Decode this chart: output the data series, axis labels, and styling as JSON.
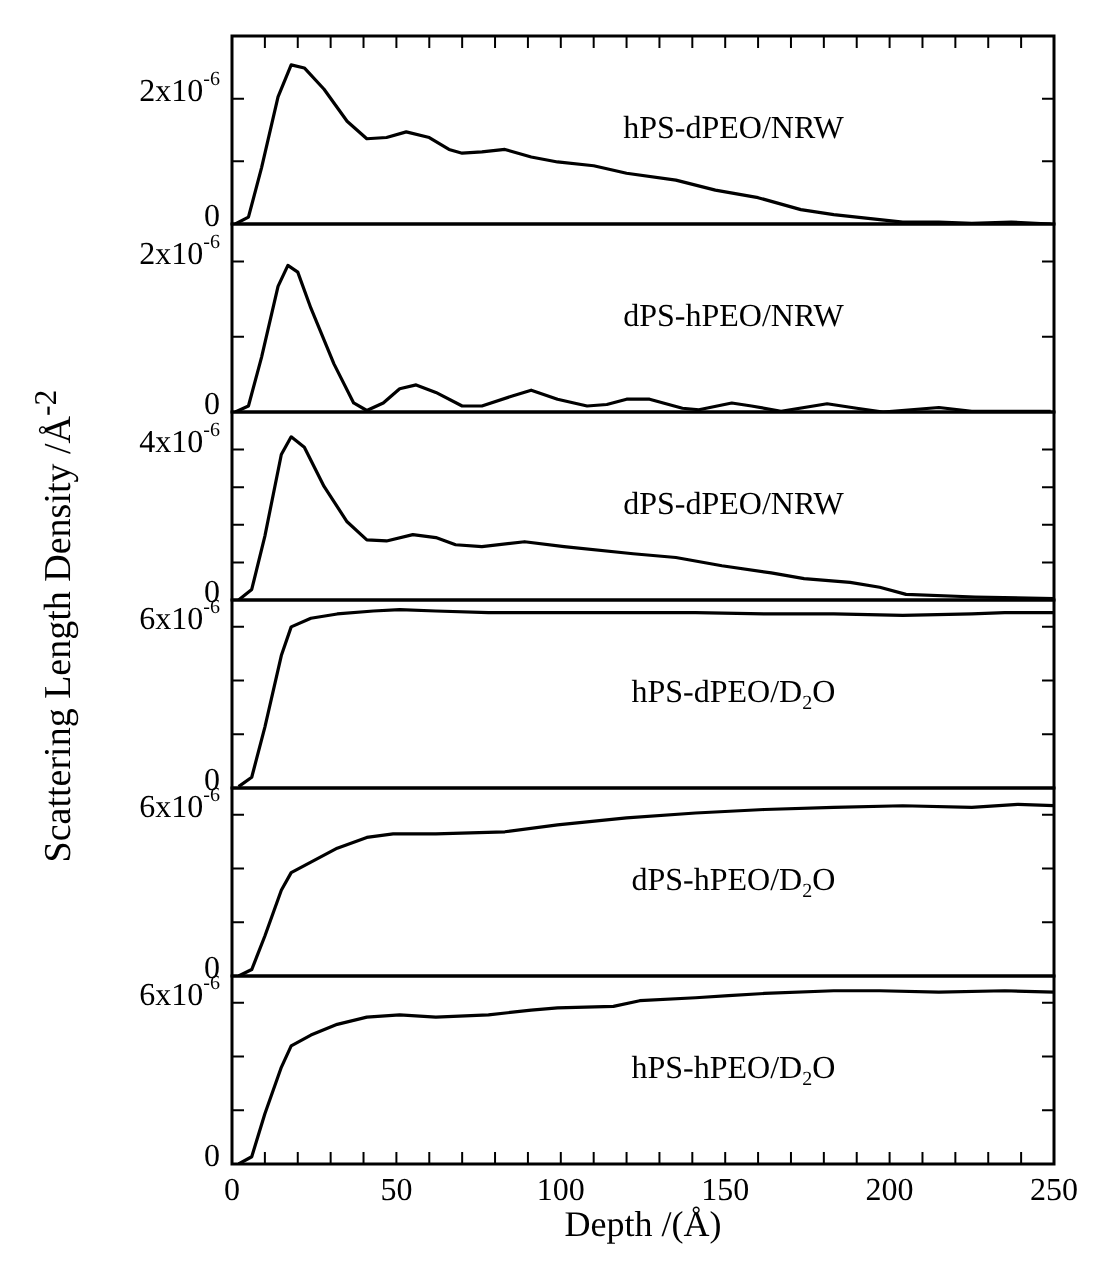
{
  "chart_data": [
    {
      "type": "line",
      "annotations": [
        "hPS-dPEO/NRW"
      ],
      "tick_labels": "y",
      "xlim": [
        0,
        250
      ],
      "xticks": [
        {
          "value": 0,
          "label": null
        },
        {
          "value": 10,
          "label": null
        },
        {
          "value": 20,
          "label": null
        },
        {
          "value": 30,
          "label": null
        },
        {
          "value": 40,
          "label": null
        },
        {
          "value": 50,
          "label": null
        },
        {
          "value": 60,
          "label": null
        },
        {
          "value": 70,
          "label": null
        },
        {
          "value": 80,
          "label": null
        },
        {
          "value": 90,
          "label": null
        },
        {
          "value": 100,
          "label": null
        },
        {
          "value": 110,
          "label": null
        },
        {
          "value": 120,
          "label": null
        },
        {
          "value": 130,
          "label": null
        },
        {
          "value": 140,
          "label": null
        },
        {
          "value": 150,
          "label": null
        },
        {
          "value": 160,
          "label": null
        },
        {
          "value": 170,
          "label": null
        },
        {
          "value": 180,
          "label": null
        },
        {
          "value": 190,
          "label": null
        },
        {
          "value": 200,
          "label": null
        },
        {
          "value": 210,
          "label": null
        },
        {
          "value": 220,
          "label": null
        },
        {
          "value": 230,
          "label": null
        },
        {
          "value": 240,
          "label": null
        },
        {
          "value": 250,
          "label": null
        }
      ],
      "ylim": [
        0,
        3e-06
      ],
      "yticks": [
        {
          "value": 0,
          "label": "0"
        },
        {
          "value": 1e-06,
          "label": null
        },
        {
          "value": 2e-06,
          "label": "2x10$^{-6}$"
        }
      ],
      "x": [
        1,
        5,
        9,
        14,
        18,
        22,
        28,
        35,
        41,
        47,
        53,
        60,
        66,
        70,
        76,
        83,
        91,
        99,
        110,
        120,
        135,
        147,
        160,
        173,
        183,
        204,
        215,
        225,
        237,
        249
      ],
      "series": [
        {
          "color": "#000000",
          "values": [
            0,
            1.1e-07,
            9e-07,
            2.03e-06,
            2.54e-06,
            2.49e-06,
            2.15e-06,
            1.64e-06,
            1.36e-06,
            1.38e-06,
            1.47e-06,
            1.38e-06,
            1.19e-06,
            1.13e-06,
            1.15e-06,
            1.19e-06,
            1.07e-06,
            9.9e-07,
            9.3e-07,
            8.1e-07,
            7e-07,
            5.4e-07,
            4.2e-07,
            2.3e-07,
            1.5e-07,
            3e-08,
            3e-08,
            1e-08,
            3e-08,
            0
          ]
        }
      ]
    },
    {
      "type": "line",
      "annotations": [
        "dPS-hPEO/NRW"
      ],
      "tick_labels": "y",
      "xlim": [
        0,
        250
      ],
      "ylim": [
        0,
        2.5e-06
      ],
      "yticks": [
        {
          "value": 0,
          "label": "0"
        },
        {
          "value": 1e-06,
          "label": null
        },
        {
          "value": 2e-06,
          "label": "2x10$^{-6}$"
        }
      ],
      "x": [
        1,
        5,
        9,
        14,
        17,
        20,
        24,
        31,
        37,
        41,
        46,
        51,
        56,
        62,
        70,
        76,
        85,
        91,
        99,
        108,
        114,
        120,
        127,
        137,
        142,
        152,
        158,
        167,
        181,
        190,
        198,
        215,
        225,
        249
      ],
      "series": [
        {
          "color": "#000000",
          "values": [
            0,
            8e-08,
            7.3e-07,
            1.67e-06,
            1.95e-06,
            1.86e-06,
            1.38e-06,
            6.4e-07,
            1.2e-07,
            2e-08,
            1.2e-07,
            3.1e-07,
            3.6e-07,
            2.6e-07,
            8e-08,
            8e-08,
            2.1e-07,
            2.9e-07,
            1.7e-07,
            8e-08,
            1e-07,
            1.7e-07,
            1.7e-07,
            5e-08,
            3e-08,
            1.2e-07,
            8e-08,
            1e-08,
            1.1e-07,
            5e-08,
            0,
            6e-08,
            1e-08,
            1e-08
          ]
        }
      ]
    },
    {
      "type": "line",
      "ylabel": "Scattering Length Density /Å$^{-2}$",
      "annotations": [
        "dPS-dPEO/NRW"
      ],
      "tick_labels": "y",
      "xlim": [
        0,
        250
      ],
      "ylim": [
        0,
        5e-06
      ],
      "yticks": [
        {
          "value": 0,
          "label": "0"
        },
        {
          "value": 1e-06,
          "label": null
        },
        {
          "value": 2e-06,
          "label": null
        },
        {
          "value": 3e-06,
          "label": null
        },
        {
          "value": 4e-06,
          "label": "4x10$^{-6}$"
        }
      ],
      "x": [
        2,
        6,
        10,
        15,
        18,
        22,
        28,
        35,
        41,
        47,
        55,
        62,
        68,
        76,
        89,
        101,
        122,
        135,
        149,
        164,
        174,
        188,
        197,
        205,
        226,
        250
      ],
      "series": [
        {
          "color": "#000000",
          "values": [
            0,
            2.8e-07,
            1.7e-06,
            3.87e-06,
            4.34e-06,
            4.06e-06,
            3.02e-06,
            2.08e-06,
            1.6e-06,
            1.57e-06,
            1.74e-06,
            1.66e-06,
            1.47e-06,
            1.42e-06,
            1.55e-06,
            1.42e-06,
            1.23e-06,
            1.13e-06,
            9.1e-07,
            7.2e-07,
            5.7e-07,
            4.7e-07,
            3.4e-07,
            1.5e-07,
            8e-08,
            4e-08
          ]
        }
      ]
    },
    {
      "type": "line",
      "annotations": [
        "hPS-dPEO/D$_{2}$O"
      ],
      "tick_labels": "y",
      "xlim": [
        0,
        250
      ],
      "ylim": [
        0,
        7e-06
      ],
      "yticks": [
        {
          "value": 0,
          "label": "0"
        },
        {
          "value": 2e-06,
          "label": null
        },
        {
          "value": 4e-06,
          "label": null
        },
        {
          "value": 6e-06,
          "label": "6x10$^{-6}$"
        }
      ],
      "x": [
        2,
        6,
        10,
        15,
        18,
        24,
        32,
        43,
        51,
        62,
        78,
        99,
        120,
        141,
        162,
        183,
        204,
        225,
        235,
        250
      ],
      "series": [
        {
          "color": "#000000",
          "values": [
            5e-08,
            4e-07,
            2.27e-06,
            4.93e-06,
            6e-06,
            6.32e-06,
            6.48e-06,
            6.59e-06,
            6.64e-06,
            6.59e-06,
            6.53e-06,
            6.53e-06,
            6.53e-06,
            6.53e-06,
            6.48e-06,
            6.48e-06,
            6.43e-06,
            6.48e-06,
            6.53e-06,
            6.53e-06
          ]
        }
      ]
    },
    {
      "type": "line",
      "annotations": [
        "dPS-hPEO/D$_{2}$O"
      ],
      "tick_labels": "y",
      "xlim": [
        0,
        250
      ],
      "ylim": [
        0,
        7e-06
      ],
      "yticks": [
        {
          "value": 0,
          "label": "0"
        },
        {
          "value": 2e-06,
          "label": null
        },
        {
          "value": 4e-06,
          "label": null
        },
        {
          "value": 6e-06,
          "label": "6x10$^{-6}$"
        }
      ],
      "x": [
        2,
        6,
        10,
        15,
        18,
        24,
        32,
        41,
        49,
        62,
        83,
        99,
        120,
        141,
        162,
        183,
        204,
        225,
        239,
        250
      ],
      "series": [
        {
          "color": "#000000",
          "values": [
            0,
            2.4e-07,
            1.49e-06,
            3.19e-06,
            3.85e-06,
            4.24e-06,
            4.76e-06,
            5.16e-06,
            5.29e-06,
            5.29e-06,
            5.37e-06,
            5.63e-06,
            5.89e-06,
            6.07e-06,
            6.2e-06,
            6.28e-06,
            6.34e-06,
            6.28e-06,
            6.39e-06,
            6.34e-06
          ]
        }
      ]
    },
    {
      "type": "line",
      "xlabel": "Depth /(Å)",
      "annotations": [
        "hPS-hPEO/D$_{2}$O"
      ],
      "xlim": [
        0,
        250
      ],
      "xticks": [
        0,
        {
          "value": 10,
          "label": null
        },
        {
          "value": 20,
          "label": null
        },
        {
          "value": 30,
          "label": null
        },
        {
          "value": 40,
          "label": null
        },
        50,
        {
          "value": 60,
          "label": null
        },
        {
          "value": 70,
          "label": null
        },
        {
          "value": 80,
          "label": null
        },
        {
          "value": 90,
          "label": null
        },
        100,
        {
          "value": 110,
          "label": null
        },
        {
          "value": 120,
          "label": null
        },
        {
          "value": 130,
          "label": null
        },
        {
          "value": 140,
          "label": null
        },
        150,
        {
          "value": 160,
          "label": null
        },
        {
          "value": 170,
          "label": null
        },
        {
          "value": 180,
          "label": null
        },
        {
          "value": 190,
          "label": null
        },
        200,
        {
          "value": 210,
          "label": null
        },
        {
          "value": 220,
          "label": null
        },
        {
          "value": 230,
          "label": null
        },
        {
          "value": 240,
          "label": null
        },
        250
      ],
      "ylim": [
        0,
        7e-06
      ],
      "yticks": [
        {
          "value": 0,
          "label": "0"
        },
        {
          "value": 2e-06,
          "label": null
        },
        {
          "value": 4e-06,
          "label": null
        },
        {
          "value": 6e-06,
          "label": "6x10$^{-6}$"
        }
      ],
      "x": [
        2,
        6,
        10,
        15,
        18,
        24,
        32,
        41,
        51,
        62,
        78,
        91,
        99,
        116,
        124,
        141,
        151,
        162,
        183,
        197,
        215,
        235,
        250
      ],
      "series": [
        {
          "color": "#000000",
          "values": [
            0,
            2.7e-07,
            1.87e-06,
            3.6e-06,
            4.4e-06,
            4.8e-06,
            5.2e-06,
            5.47e-06,
            5.55e-06,
            5.47e-06,
            5.55e-06,
            5.73e-06,
            5.81e-06,
            5.87e-06,
            6.08e-06,
            6.19e-06,
            6.27e-06,
            6.35e-06,
            6.45e-06,
            6.45e-06,
            6.4e-06,
            6.45e-06,
            6.4e-06
          ]
        }
      ]
    }
  ]
}
